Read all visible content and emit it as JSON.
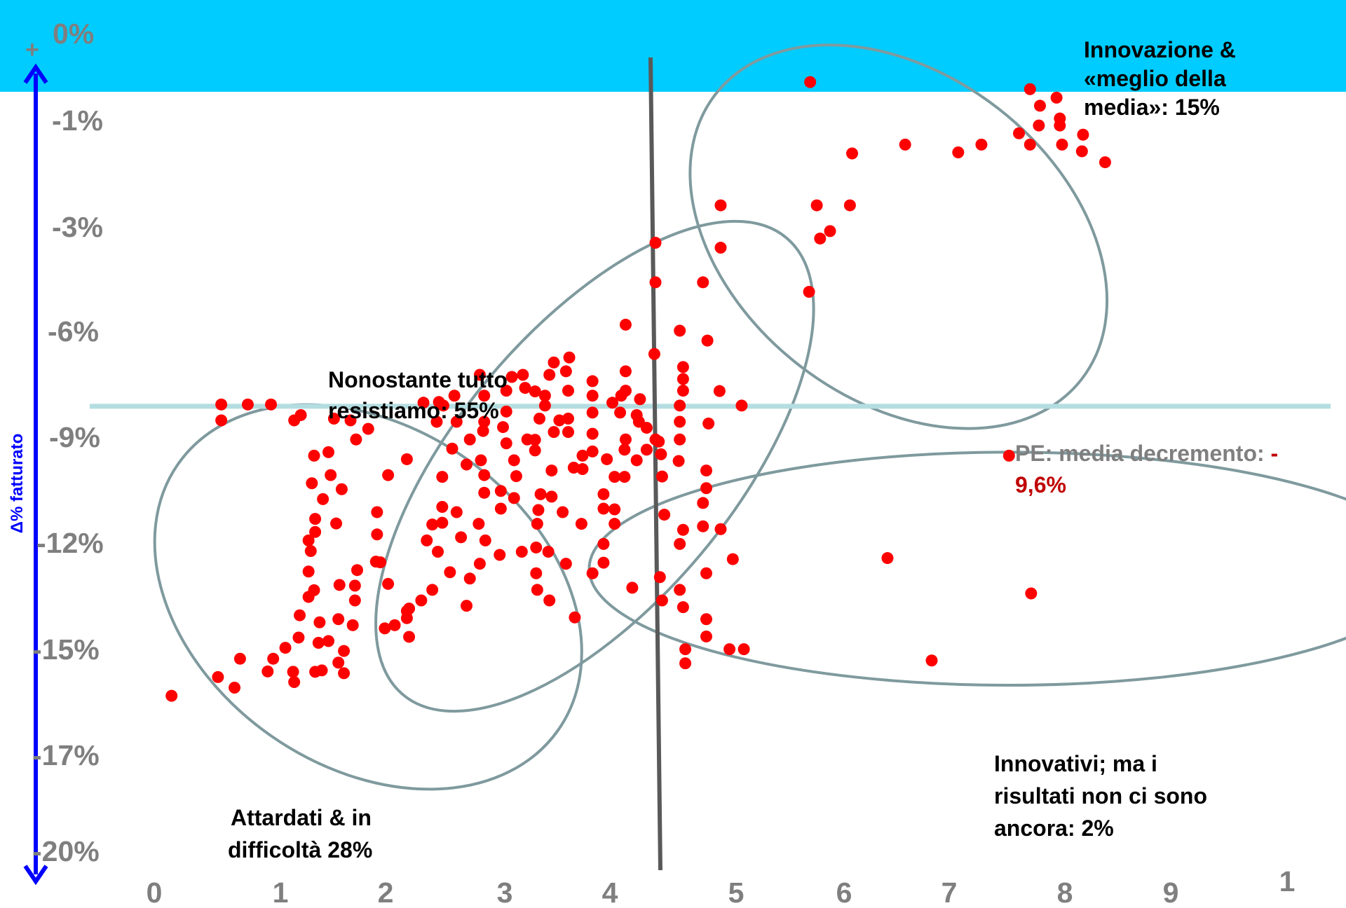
{
  "colors": {
    "banner": "#00ccff",
    "axis_arrow": "#0000ff",
    "points": "#ff0000",
    "ellipses": "#7f9a9e",
    "vertical_line": "#595959",
    "mean_line": "#b4dde1",
    "tick_text": "#7f7f7f",
    "pe_value": "#c00000"
  },
  "chart_data": {
    "type": "scatter",
    "ylabel": "Δ% fatturato",
    "ytick_labels": [
      "0%",
      "-1%",
      "-3%",
      "-6%",
      "-9%",
      "-12%",
      "-15%",
      "-17%",
      "-20%"
    ],
    "y_plus_marker": "+",
    "xtick_labels": [
      "0",
      "1",
      "2",
      "3",
      "4",
      "5",
      "6",
      "7",
      "8",
      "9",
      "1"
    ],
    "vertical_reference_x": 5,
    "mean_reference": {
      "y": -9.6,
      "label": "PE: media decremento: ",
      "value_prefix": "-",
      "value": "9,6%"
    },
    "annotations": {
      "top_right": [
        "Innovazione &",
        "«meglio della",
        "media»: 15%"
      ],
      "center": [
        "Nonostante tutto",
        "resistiamo: 55%"
      ],
      "bottom_left": [
        "Attardati & in",
        "difficoltà 28%"
      ],
      "bottom_right": [
        "Innovativi; ma i",
        "risultati non ci sono",
        "ancora: 2%"
      ]
    },
    "ellipses": [
      {
        "group": "top-right",
        "cx": 7.2,
        "cy": -4.8,
        "rx": 2.1,
        "ry": 4.6,
        "rotate": 38
      },
      {
        "group": "center",
        "cx": 4.45,
        "cy": -11.3,
        "rx": 2.7,
        "ry": 3.9,
        "rotate": -50
      },
      {
        "group": "bottom-left",
        "cx": 2.4,
        "cy": -15.0,
        "rx": 2.1,
        "ry": 4.8,
        "rotate": 35
      },
      {
        "group": "bottom-right",
        "cx": 8.2,
        "cy": -14.2,
        "rx": 3.8,
        "ry": 3.3,
        "rotate": 0
      }
    ],
    "points": [
      [
        6.4,
        -0.42
      ],
      [
        8.39,
        -0.62
      ],
      [
        8.63,
        -0.86
      ],
      [
        8.48,
        -1.09
      ],
      [
        8.66,
        -1.45
      ],
      [
        8.47,
        -1.65
      ],
      [
        8.66,
        -1.65
      ],
      [
        8.29,
        -1.87
      ],
      [
        8.87,
        -1.91
      ],
      [
        7.26,
        -2.19
      ],
      [
        7.95,
        -2.19
      ],
      [
        8.39,
        -2.19
      ],
      [
        8.68,
        -2.19
      ],
      [
        8.86,
        -2.38
      ],
      [
        7.74,
        -2.41
      ],
      [
        6.78,
        -2.44
      ],
      [
        9.07,
        -2.69
      ],
      [
        5.59,
        -3.91
      ],
      [
        6.46,
        -3.91
      ],
      [
        6.76,
        -3.91
      ],
      [
        6.49,
        -4.85
      ],
      [
        6.58,
        -4.64
      ],
      [
        5.59,
        -5.11
      ],
      [
        6.39,
        -6.36
      ],
      [
        5.0,
        -4.97
      ],
      [
        5.0,
        -6.09
      ],
      [
        5.43,
        -6.09
      ],
      [
        5.22,
        -7.46
      ],
      [
        5.47,
        -7.74
      ],
      [
        5.25,
        -8.49
      ],
      [
        5.25,
        -8.83
      ],
      [
        5.25,
        -9.16
      ],
      [
        5.58,
        -9.17
      ],
      [
        5.78,
        -9.58
      ],
      [
        5.22,
        -9.58
      ],
      [
        5.22,
        -10.04
      ],
      [
        5.48,
        -10.09
      ],
      [
        5.22,
        -10.54
      ],
      [
        5.03,
        -10.6
      ],
      [
        5.05,
        -10.96
      ],
      [
        4.85,
        -10.04
      ],
      [
        4.92,
        -10.21
      ],
      [
        5.0,
        -10.54
      ],
      [
        4.73,
        -10.54
      ],
      [
        4.92,
        -10.83
      ],
      [
        4.72,
        -10.83
      ],
      [
        4.83,
        -11.13
      ],
      [
        4.56,
        -11.1
      ],
      [
        5.06,
        -11.59
      ],
      [
        5.21,
        -11.15
      ],
      [
        5.46,
        -11.42
      ],
      [
        5.46,
        -11.92
      ],
      [
        5.43,
        -12.34
      ],
      [
        5.08,
        -12.67
      ],
      [
        5.25,
        -13.1
      ],
      [
        5.43,
        -13.0
      ],
      [
        5.59,
        -13.08
      ],
      [
        5.22,
        -13.5
      ],
      [
        5.7,
        -13.93
      ],
      [
        5.04,
        -14.44
      ],
      [
        5.46,
        -14.33
      ],
      [
        4.79,
        -14.74
      ],
      [
        5.22,
        -14.8
      ],
      [
        5.06,
        -15.1
      ],
      [
        5.25,
        -15.29
      ],
      [
        5.46,
        -15.63
      ],
      [
        5.46,
        -16.12
      ],
      [
        5.27,
        -16.48
      ],
      [
        5.67,
        -16.48
      ],
      [
        5.8,
        -16.48
      ],
      [
        5.27,
        -16.88
      ],
      [
        4.99,
        -8.12
      ],
      [
        4.73,
        -7.29
      ],
      [
        4.73,
        -8.61
      ],
      [
        4.73,
        -9.16
      ],
      [
        4.69,
        -9.3
      ],
      [
        4.86,
        -9.4
      ],
      [
        4.61,
        -9.5
      ],
      [
        4.83,
        -9.85
      ],
      [
        4.68,
        -9.78
      ],
      [
        4.43,
        -8.89
      ],
      [
        4.43,
        -9.3
      ],
      [
        4.43,
        -9.78
      ],
      [
        4.21,
        -9.16
      ],
      [
        4.0,
        -9.3
      ],
      [
        4.21,
        -9.95
      ],
      [
        4.43,
        -10.38
      ],
      [
        4.21,
        -10.33
      ],
      [
        4.43,
        -10.88
      ],
      [
        4.26,
        -11.34
      ],
      [
        4.06,
        -11.42
      ],
      [
        4.63,
        -11.6
      ],
      [
        4.72,
        -11.6
      ],
      [
        4.53,
        -12.09
      ],
      [
        4.53,
        -12.5
      ],
      [
        4.63,
        -12.52
      ],
      [
        4.63,
        -12.93
      ],
      [
        4.33,
        -12.93
      ],
      [
        4.53,
        -13.5
      ],
      [
        4.53,
        -14.03
      ],
      [
        4.19,
        -14.06
      ],
      [
        4.43,
        -14.33
      ],
      [
        4.06,
        -12.16
      ],
      [
        4.16,
        -12.6
      ],
      [
        3.96,
        -12.09
      ],
      [
        3.94,
        -12.54
      ],
      [
        3.93,
        -12.93
      ],
      [
        3.92,
        -13.6
      ],
      [
        4.03,
        -13.72
      ],
      [
        3.92,
        -14.33
      ],
      [
        3.93,
        -14.8
      ],
      [
        4.04,
        -15.1
      ],
      [
        4.27,
        -15.58
      ],
      [
        4.34,
        -11.38
      ],
      [
        4.34,
        -11.0
      ],
      [
        3.91,
        -10.85
      ],
      [
        3.91,
        -10.55
      ],
      [
        4.08,
        -10.33
      ],
      [
        4.13,
        -10.0
      ],
      [
        3.95,
        -9.95
      ],
      [
        4.0,
        -9.58
      ],
      [
        3.91,
        -9.18
      ],
      [
        3.7,
        -8.77
      ],
      [
        3.65,
        -9.16
      ],
      [
        3.65,
        -9.75
      ],
      [
        3.62,
        -10.19
      ],
      [
        3.65,
        -10.65
      ],
      [
        3.84,
        -10.54
      ],
      [
        3.72,
        -11.13
      ],
      [
        3.74,
        -11.58
      ],
      [
        3.6,
        -12.0
      ],
      [
        3.72,
        -12.2
      ],
      [
        3.6,
        -12.5
      ],
      [
        3.4,
        -12.93
      ],
      [
        3.46,
        -13.4
      ],
      [
        3.59,
        -13.81
      ],
      [
        3.79,
        -13.72
      ],
      [
        3.8,
        -8.71
      ],
      [
        3.82,
        -9.08
      ],
      [
        4.04,
        -8.71
      ],
      [
        4.19,
        -8.61
      ],
      [
        4.08,
        -8.36
      ],
      [
        4.22,
        -8.22
      ],
      [
        3.41,
        -8.71
      ],
      [
        3.45,
        -9.3
      ],
      [
        3.45,
        -10.04
      ],
      [
        3.44,
        -10.3
      ],
      [
        3.42,
        -11.13
      ],
      [
        3.45,
        -11.55
      ],
      [
        3.45,
        -12.05
      ],
      [
        3.2,
        -12.6
      ],
      [
        3.07,
        -12.9
      ],
      [
        3.24,
        -13.31
      ],
      [
        3.41,
        -14.06
      ],
      [
        3.32,
        -14.48
      ],
      [
        3.29,
        -15.25
      ],
      [
        3.04,
        -9.48
      ],
      [
        3.02,
        -10.04
      ],
      [
        3.2,
        -10.04
      ],
      [
        3.32,
        -10.54
      ],
      [
        3.16,
        -10.8
      ],
      [
        3.29,
        -11.25
      ],
      [
        3.07,
        -11.6
      ],
      [
        3.07,
        -12.45
      ],
      [
        2.98,
        -12.95
      ],
      [
        2.93,
        -13.4
      ],
      [
        3.03,
        -13.72
      ],
      [
        3.14,
        -14.3
      ],
      [
        2.98,
        -14.8
      ],
      [
        2.88,
        -15.1
      ],
      [
        2.75,
        -15.4
      ],
      [
        2.75,
        -15.6
      ],
      [
        3.08,
        -9.58
      ],
      [
        3.18,
        -9.3
      ],
      [
        2.9,
        -9.5
      ],
      [
        2.75,
        -11.1
      ],
      [
        2.58,
        -11.55
      ],
      [
        2.48,
        -12.6
      ],
      [
        2.48,
        -13.23
      ],
      [
        2.51,
        -14.02
      ],
      [
        2.58,
        -14.63
      ],
      [
        2.77,
        -15.33
      ],
      [
        2.64,
        -15.8
      ],
      [
        2.55,
        -15.89
      ],
      [
        2.77,
        -16.13
      ],
      [
        2.47,
        -14.0
      ],
      [
        2.3,
        -14.24
      ],
      [
        2.28,
        -14.68
      ],
      [
        2.28,
        -15.1
      ],
      [
        2.14,
        -14.66
      ],
      [
        2.26,
        -15.8
      ],
      [
        2.13,
        -15.63
      ],
      [
        2.18,
        -16.53
      ],
      [
        2.04,
        -16.25
      ],
      [
        2.13,
        -16.86
      ],
      [
        1.95,
        -16.3
      ],
      [
        1.73,
        -10.0
      ],
      [
        1.52,
        -9.55
      ],
      [
        1.31,
        -9.55
      ],
      [
        1.07,
        -9.55
      ],
      [
        1.07,
        -10.0
      ],
      [
        2.09,
        -9.95
      ],
      [
        1.79,
        -9.85
      ],
      [
        2.04,
        -10.9
      ],
      [
        1.91,
        -11.0
      ],
      [
        2.06,
        -11.55
      ],
      [
        2.16,
        -11.95
      ],
      [
        1.89,
        -11.78
      ],
      [
        1.99,
        -12.23
      ],
      [
        1.92,
        -12.79
      ],
      [
        2.11,
        -12.92
      ],
      [
        1.92,
        -13.16
      ],
      [
        1.86,
        -13.4
      ],
      [
        1.88,
        -13.7
      ],
      [
        1.86,
        -14.28
      ],
      [
        1.91,
        -14.81
      ],
      [
        1.86,
        -15.0
      ],
      [
        1.78,
        -15.52
      ],
      [
        1.96,
        -15.72
      ],
      [
        1.77,
        -16.15
      ],
      [
        1.65,
        -16.44
      ],
      [
        1.54,
        -16.75
      ],
      [
        1.24,
        -16.75
      ],
      [
        1.49,
        -17.11
      ],
      [
        1.72,
        -17.12
      ],
      [
        1.92,
        -17.12
      ],
      [
        1.98,
        -17.08
      ],
      [
        2.18,
        -17.16
      ],
      [
        1.73,
        -17.41
      ],
      [
        1.19,
        -17.57
      ],
      [
        1.04,
        -17.27
      ],
      [
        0.62,
        -17.8
      ],
      [
        2.29,
        -10.54
      ],
      [
        2.4,
        -10.24
      ],
      [
        2.24,
        -10.0
      ],
      [
        7.1,
        -13.9
      ],
      [
        8.4,
        -14.9
      ],
      [
        7.5,
        -16.8
      ],
      [
        8.2,
        -11.0
      ]
    ]
  }
}
